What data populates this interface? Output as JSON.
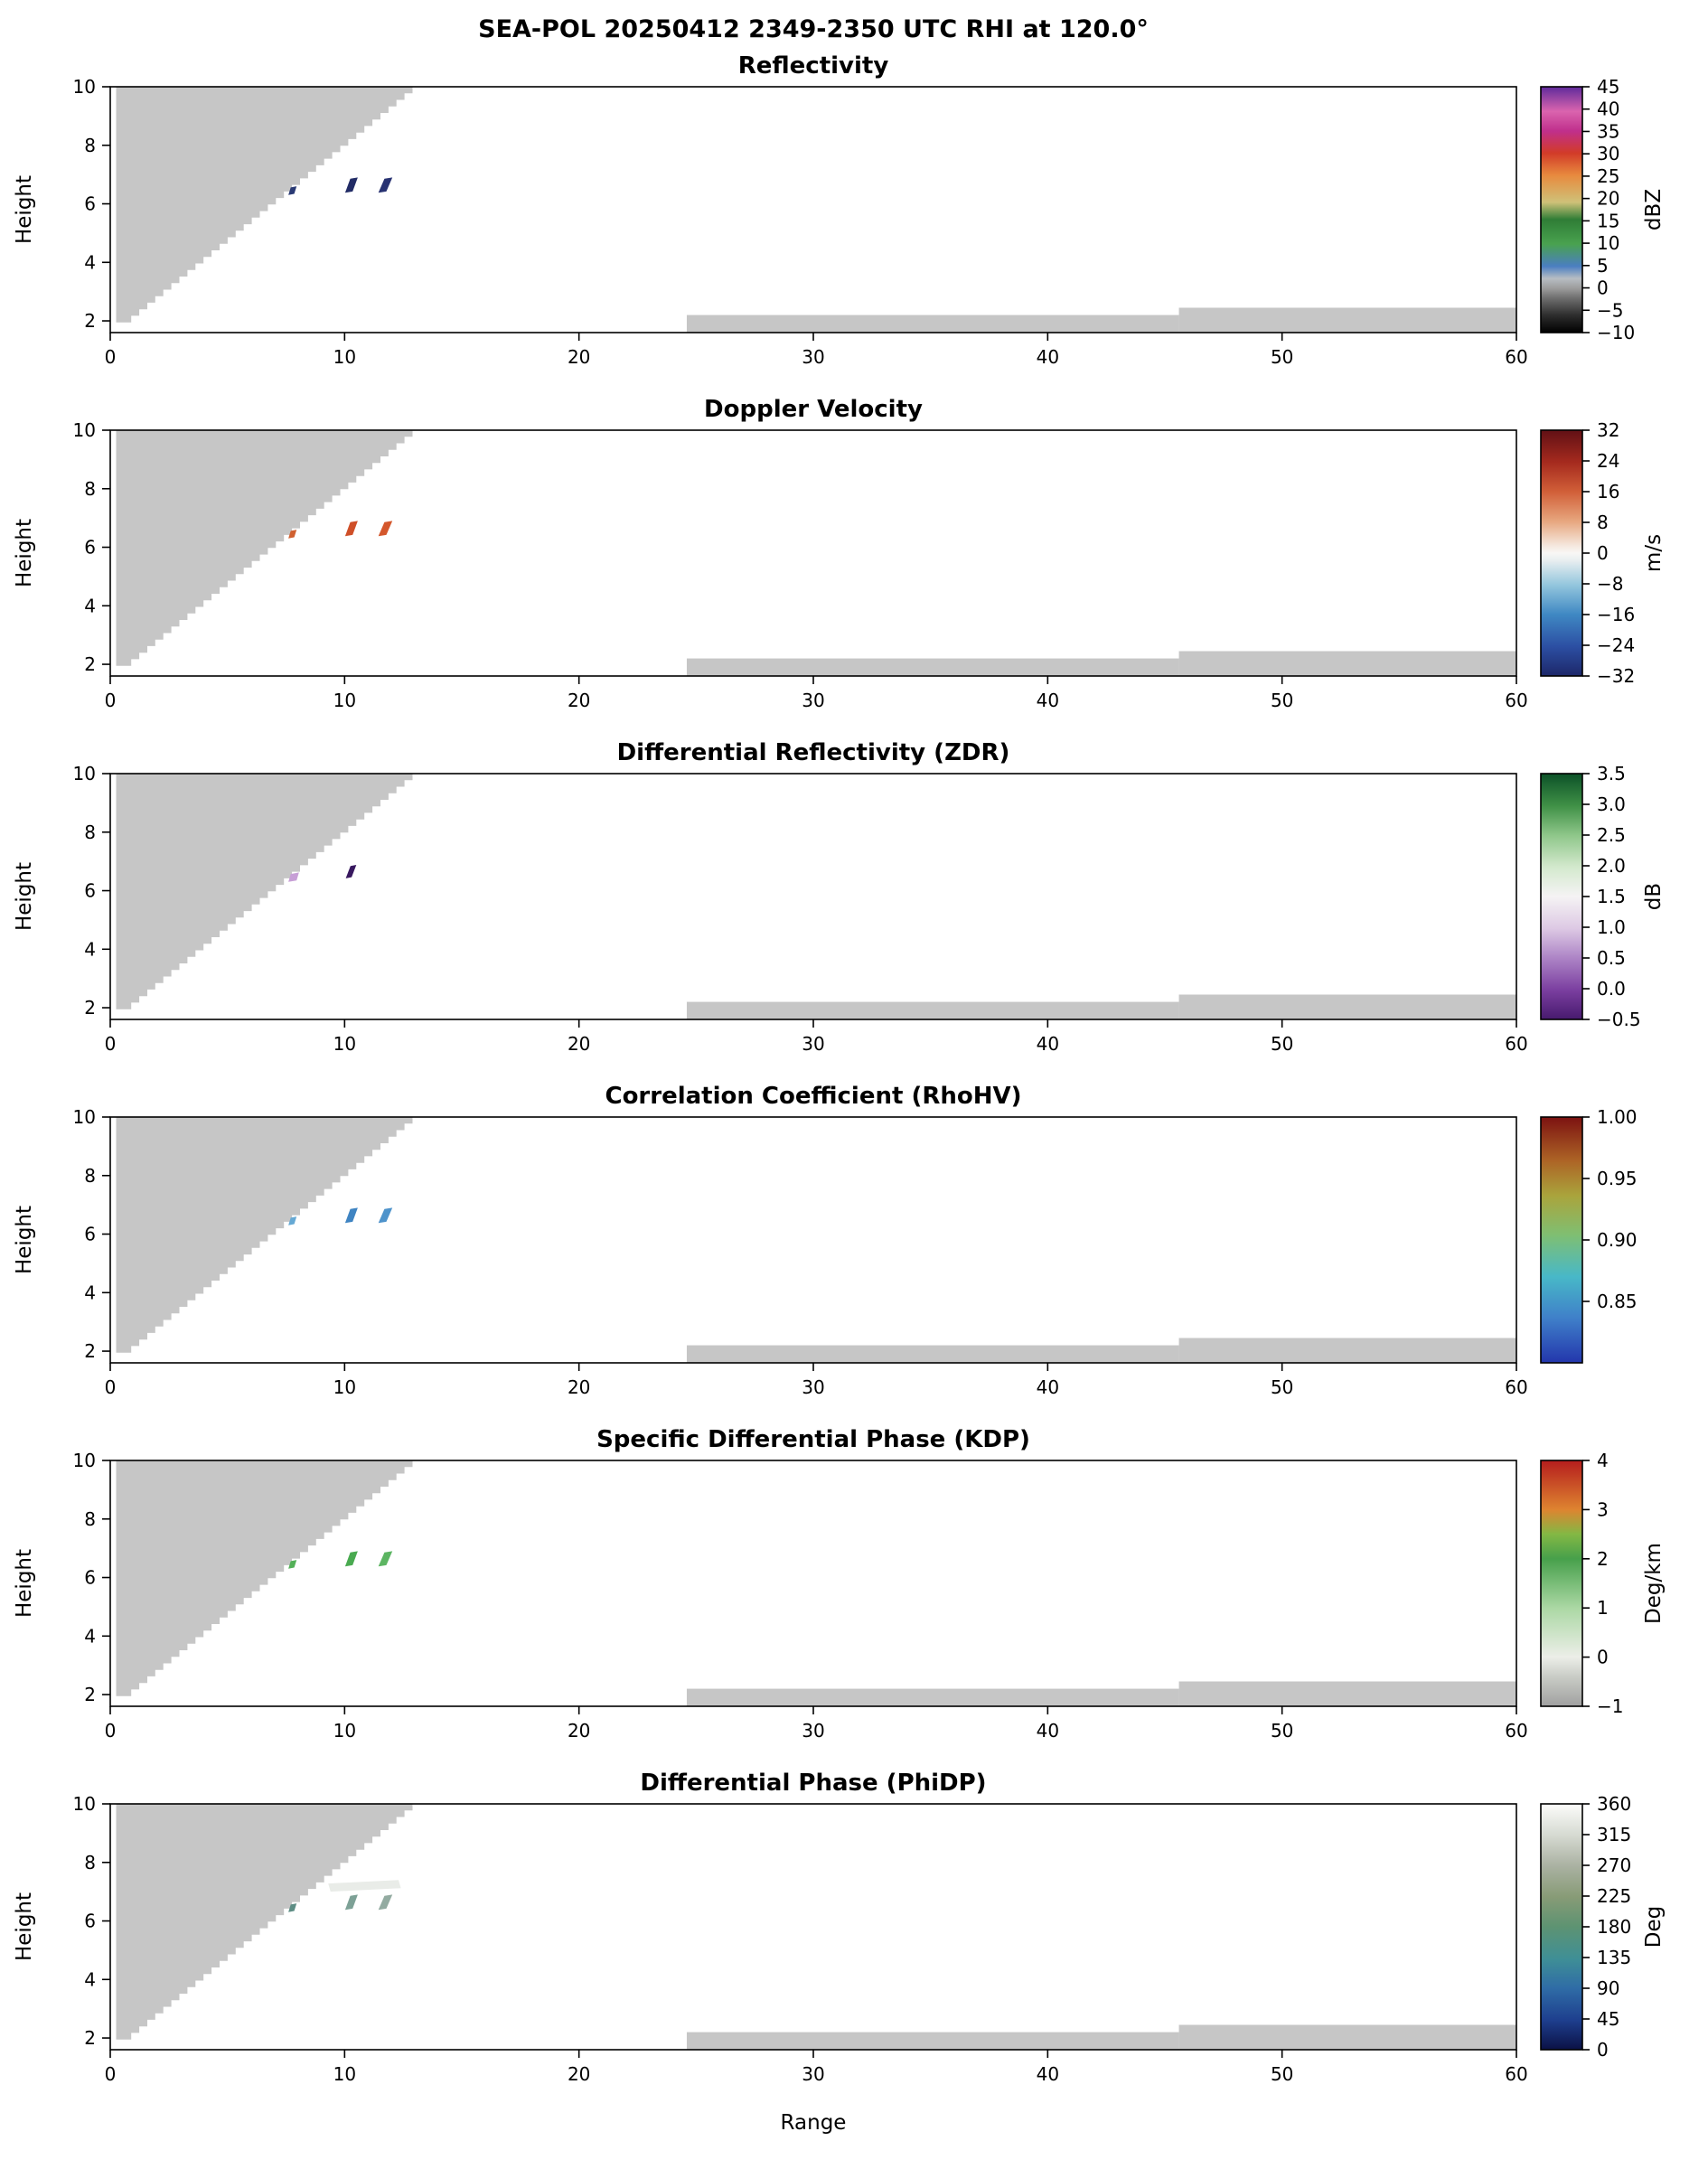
{
  "chart_data": {
    "type": "heatmap",
    "subtype": "radar RHI cross-sections, 6 vertically stacked panels sharing axes",
    "title": "SEA-POL 20250412 2349-2350 UTC RHI at 120.0°",
    "xlabel": "Range",
    "ylabel": "Height",
    "xlim": [
      0,
      60
    ],
    "xticks": [
      "0",
      "10",
      "20",
      "30",
      "40",
      "50",
      "60"
    ],
    "ylim": [
      1.6,
      10
    ],
    "yticks": [
      "2",
      "4",
      "6",
      "8",
      "10"
    ],
    "grid": false,
    "background": "#ffffff",
    "mask": {
      "note": "gray no-data / beam-blockage wedge in upper-left of every panel, jagged stepped edge",
      "color": "#c6c6c6",
      "left_x": 0.25,
      "bottom_y": 1.95,
      "top_y": 10.0,
      "edge_bottom_x": 0.55,
      "edge_top_x": 12.9,
      "steps": 36
    },
    "strips": {
      "note": "thin gray near-ground echo strips along the bottom of every panel",
      "color": "#c6c6c6",
      "items": [
        {
          "x0": 24.6,
          "x1": 45.6,
          "y0": 1.6,
          "y1": 2.2
        },
        {
          "x0": 45.6,
          "x1": 60.0,
          "y0": 1.6,
          "y1": 2.45
        }
      ]
    },
    "panels": [
      {
        "id": "reflectivity",
        "title": "Reflectivity",
        "unit": "dBZ",
        "cbar": {
          "min": -10,
          "max": 45,
          "ticks": [
            {
              "v": 45,
              "label": "45"
            },
            {
              "v": 40,
              "label": "40"
            },
            {
              "v": 35,
              "label": "35"
            },
            {
              "v": 30,
              "label": "30"
            },
            {
              "v": 25,
              "label": "25"
            },
            {
              "v": 20,
              "label": "20"
            },
            {
              "v": 15,
              "label": "15"
            },
            {
              "v": 10,
              "label": "10"
            },
            {
              "v": 5,
              "label": "5"
            },
            {
              "v": 0,
              "label": "0"
            },
            {
              "v": -5,
              "label": "−5"
            },
            {
              "v": -10,
              "label": "−10"
            }
          ],
          "stops": [
            {
              "f": 0.0,
              "c": "#000000"
            },
            {
              "f": 0.07,
              "c": "#2d2d2d"
            },
            {
              "f": 0.14,
              "c": "#6e6e6e"
            },
            {
              "f": 0.18,
              "c": "#9c9c9c"
            },
            {
              "f": 0.22,
              "c": "#b7bdc3"
            },
            {
              "f": 0.27,
              "c": "#4a7ec1"
            },
            {
              "f": 0.36,
              "c": "#49a24f"
            },
            {
              "f": 0.46,
              "c": "#2f7d36"
            },
            {
              "f": 0.53,
              "c": "#cfc178"
            },
            {
              "f": 0.64,
              "c": "#e88a3e"
            },
            {
              "f": 0.73,
              "c": "#d23b28"
            },
            {
              "f": 0.82,
              "c": "#c02f8c"
            },
            {
              "f": 0.9,
              "c": "#da64ae"
            },
            {
              "f": 1.0,
              "c": "#5f2b9b"
            }
          ]
        },
        "echoes": [
          {
            "color": "#2a3a74",
            "poly": [
              [
                7.6,
                6.3
              ],
              [
                7.85,
                6.34
              ],
              [
                7.95,
                6.6
              ],
              [
                7.7,
                6.56
              ]
            ]
          },
          {
            "color": "#222c66",
            "poly": [
              [
                10.02,
                6.38
              ],
              [
                10.34,
                6.42
              ],
              [
                10.56,
                6.9
              ],
              [
                10.24,
                6.86
              ]
            ]
          },
          {
            "color": "#283272",
            "poly": [
              [
                11.44,
                6.38
              ],
              [
                11.78,
                6.42
              ],
              [
                12.04,
                6.9
              ],
              [
                11.7,
                6.86
              ]
            ]
          }
        ]
      },
      {
        "id": "velocity",
        "title": "Doppler Velocity",
        "unit": "m/s",
        "cbar": {
          "min": -32,
          "max": 32,
          "ticks": [
            {
              "v": 32,
              "label": "32"
            },
            {
              "v": 24,
              "label": "24"
            },
            {
              "v": 16,
              "label": "16"
            },
            {
              "v": 8,
              "label": "8"
            },
            {
              "v": 0,
              "label": "0"
            },
            {
              "v": -8,
              "label": "−8"
            },
            {
              "v": -16,
              "label": "−16"
            },
            {
              "v": -24,
              "label": "−24"
            },
            {
              "v": -32,
              "label": "−32"
            }
          ],
          "stops": [
            {
              "f": 0.0,
              "c": "#1d2769"
            },
            {
              "f": 0.12,
              "c": "#2c4fa3"
            },
            {
              "f": 0.25,
              "c": "#3f88c3"
            },
            {
              "f": 0.37,
              "c": "#93c6dd"
            },
            {
              "f": 0.47,
              "c": "#e8eef0"
            },
            {
              "f": 0.5,
              "c": "#f8f7f5"
            },
            {
              "f": 0.53,
              "c": "#f5e8de"
            },
            {
              "f": 0.63,
              "c": "#e7a67e"
            },
            {
              "f": 0.75,
              "c": "#d15f38"
            },
            {
              "f": 0.87,
              "c": "#a52a1e"
            },
            {
              "f": 1.0,
              "c": "#611015"
            }
          ]
        },
        "echoes": [
          {
            "color": "#d06030",
            "poly": [
              [
                7.6,
                6.3
              ],
              [
                7.85,
                6.34
              ],
              [
                7.95,
                6.6
              ],
              [
                7.7,
                6.56
              ]
            ]
          },
          {
            "color": "#cf4f28",
            "poly": [
              [
                10.02,
                6.38
              ],
              [
                10.34,
                6.42
              ],
              [
                10.56,
                6.9
              ],
              [
                10.24,
                6.86
              ]
            ]
          },
          {
            "color": "#d4572c",
            "poly": [
              [
                11.44,
                6.38
              ],
              [
                11.78,
                6.42
              ],
              [
                12.04,
                6.9
              ],
              [
                11.7,
                6.86
              ]
            ]
          }
        ]
      },
      {
        "id": "zdr",
        "title": "Differential Reflectivity (ZDR)",
        "unit": "dB",
        "cbar": {
          "min": -0.5,
          "max": 3.5,
          "ticks": [
            {
              "v": 3.5,
              "label": "3.5"
            },
            {
              "v": 3.0,
              "label": "3.0"
            },
            {
              "v": 2.5,
              "label": "2.5"
            },
            {
              "v": 2.0,
              "label": "2.0"
            },
            {
              "v": 1.5,
              "label": "1.5"
            },
            {
              "v": 1.0,
              "label": "1.0"
            },
            {
              "v": 0.5,
              "label": "0.5"
            },
            {
              "v": 0.0,
              "label": "0.0"
            },
            {
              "v": -0.5,
              "label": "−0.5"
            }
          ],
          "stops": [
            {
              "f": 0.0,
              "c": "#471a6e"
            },
            {
              "f": 0.12,
              "c": "#7b3fa0"
            },
            {
              "f": 0.25,
              "c": "#ad84c6"
            },
            {
              "f": 0.37,
              "c": "#ddc9e4"
            },
            {
              "f": 0.5,
              "c": "#f5f3f4"
            },
            {
              "f": 0.62,
              "c": "#d3e9cd"
            },
            {
              "f": 0.75,
              "c": "#8ec689"
            },
            {
              "f": 0.87,
              "c": "#3f9046"
            },
            {
              "f": 1.0,
              "c": "#0c5128"
            }
          ]
        },
        "echoes": [
          {
            "color": "#c79fd6",
            "poly": [
              [
                7.6,
                6.3
              ],
              [
                7.95,
                6.35
              ],
              [
                8.05,
                6.62
              ],
              [
                7.7,
                6.57
              ]
            ]
          },
          {
            "color": "#38185f",
            "poly": [
              [
                10.05,
                6.42
              ],
              [
                10.3,
                6.46
              ],
              [
                10.5,
                6.88
              ],
              [
                10.25,
                6.84
              ]
            ]
          }
        ]
      },
      {
        "id": "rhohv",
        "title": "Correlation Coefficient (RhoHV)",
        "unit": "",
        "cbar": {
          "min": 0.8,
          "max": 1.0,
          "ticks": [
            {
              "v": 1.0,
              "label": "1.00"
            },
            {
              "v": 0.95,
              "label": "0.95"
            },
            {
              "v": 0.9,
              "label": "0.90"
            },
            {
              "v": 0.85,
              "label": "0.85"
            }
          ],
          "stops": [
            {
              "f": 0.0,
              "c": "#2336ac"
            },
            {
              "f": 0.18,
              "c": "#3f7fc9"
            },
            {
              "f": 0.35,
              "c": "#48b8c8"
            },
            {
              "f": 0.52,
              "c": "#7fbf72"
            },
            {
              "f": 0.68,
              "c": "#aaa43c"
            },
            {
              "f": 0.82,
              "c": "#ad6526"
            },
            {
              "f": 1.0,
              "c": "#7c1211"
            }
          ]
        },
        "echoes": [
          {
            "color": "#66a9d4",
            "poly": [
              [
                7.6,
                6.3
              ],
              [
                7.85,
                6.34
              ],
              [
                7.95,
                6.6
              ],
              [
                7.7,
                6.56
              ]
            ]
          },
          {
            "color": "#3f84c2",
            "poly": [
              [
                10.02,
                6.38
              ],
              [
                10.34,
                6.42
              ],
              [
                10.56,
                6.9
              ],
              [
                10.24,
                6.86
              ]
            ]
          },
          {
            "color": "#4e93cb",
            "poly": [
              [
                11.44,
                6.38
              ],
              [
                11.78,
                6.42
              ],
              [
                12.04,
                6.9
              ],
              [
                11.7,
                6.86
              ]
            ]
          }
        ]
      },
      {
        "id": "kdp",
        "title": "Specific Differential Phase (KDP)",
        "unit": "Deg/km",
        "cbar": {
          "min": -1,
          "max": 4,
          "ticks": [
            {
              "v": 4,
              "label": "4"
            },
            {
              "v": 3,
              "label": "3"
            },
            {
              "v": 2,
              "label": "2"
            },
            {
              "v": 1,
              "label": "1"
            },
            {
              "v": 0,
              "label": "0"
            },
            {
              "v": -1,
              "label": "−1"
            }
          ],
          "stops": [
            {
              "f": 0.0,
              "c": "#a0a0a0"
            },
            {
              "f": 0.12,
              "c": "#c9ccc6"
            },
            {
              "f": 0.2,
              "c": "#eceee8"
            },
            {
              "f": 0.4,
              "c": "#abd8a4"
            },
            {
              "f": 0.6,
              "c": "#47a04b"
            },
            {
              "f": 0.7,
              "c": "#83b844"
            },
            {
              "f": 0.8,
              "c": "#de8430"
            },
            {
              "f": 1.0,
              "c": "#b51d1d"
            }
          ]
        },
        "echoes": [
          {
            "color": "#53b058",
            "poly": [
              [
                7.6,
                6.3
              ],
              [
                7.85,
                6.34
              ],
              [
                7.95,
                6.6
              ],
              [
                7.7,
                6.56
              ]
            ]
          },
          {
            "color": "#49aa50",
            "poly": [
              [
                10.02,
                6.38
              ],
              [
                10.34,
                6.42
              ],
              [
                10.56,
                6.9
              ],
              [
                10.24,
                6.86
              ]
            ]
          },
          {
            "color": "#5cb562",
            "poly": [
              [
                11.44,
                6.38
              ],
              [
                11.78,
                6.42
              ],
              [
                12.04,
                6.9
              ],
              [
                11.7,
                6.86
              ]
            ]
          }
        ]
      },
      {
        "id": "phidp",
        "title": "Differential Phase (PhiDP)",
        "unit": "Deg",
        "cbar": {
          "min": 0,
          "max": 360,
          "ticks": [
            {
              "v": 360,
              "label": "360"
            },
            {
              "v": 315,
              "label": "315"
            },
            {
              "v": 270,
              "label": "270"
            },
            {
              "v": 225,
              "label": "225"
            },
            {
              "v": 180,
              "label": "180"
            },
            {
              "v": 135,
              "label": "135"
            },
            {
              "v": 90,
              "label": "90"
            },
            {
              "v": 45,
              "label": "45"
            },
            {
              "v": 0,
              "label": "0"
            }
          ],
          "stops": [
            {
              "f": 0.0,
              "c": "#0b1145"
            },
            {
              "f": 0.12,
              "c": "#1e3f8e"
            },
            {
              "f": 0.25,
              "c": "#2f6ca6"
            },
            {
              "f": 0.37,
              "c": "#3f8f96"
            },
            {
              "f": 0.5,
              "c": "#5d9372"
            },
            {
              "f": 0.62,
              "c": "#879b76"
            },
            {
              "f": 0.75,
              "c": "#abb2a3"
            },
            {
              "f": 0.87,
              "c": "#d5d9d1"
            },
            {
              "f": 1.0,
              "c": "#fcfcfa"
            }
          ]
        },
        "echoes": [
          {
            "color": "#e9ece8",
            "poly": [
              [
                9.4,
                7.0
              ],
              [
                12.4,
                7.12
              ],
              [
                12.3,
                7.4
              ],
              [
                9.3,
                7.28
              ]
            ]
          },
          {
            "color": "#5d8d84",
            "poly": [
              [
                7.6,
                6.3
              ],
              [
                7.85,
                6.34
              ],
              [
                7.95,
                6.6
              ],
              [
                7.7,
                6.56
              ]
            ]
          },
          {
            "color": "#7da196",
            "poly": [
              [
                10.02,
                6.38
              ],
              [
                10.34,
                6.42
              ],
              [
                10.56,
                6.9
              ],
              [
                10.24,
                6.86
              ]
            ]
          },
          {
            "color": "#93aba1",
            "poly": [
              [
                11.44,
                6.38
              ],
              [
                11.78,
                6.42
              ],
              [
                12.04,
                6.9
              ],
              [
                11.7,
                6.86
              ]
            ]
          }
        ]
      }
    ]
  }
}
